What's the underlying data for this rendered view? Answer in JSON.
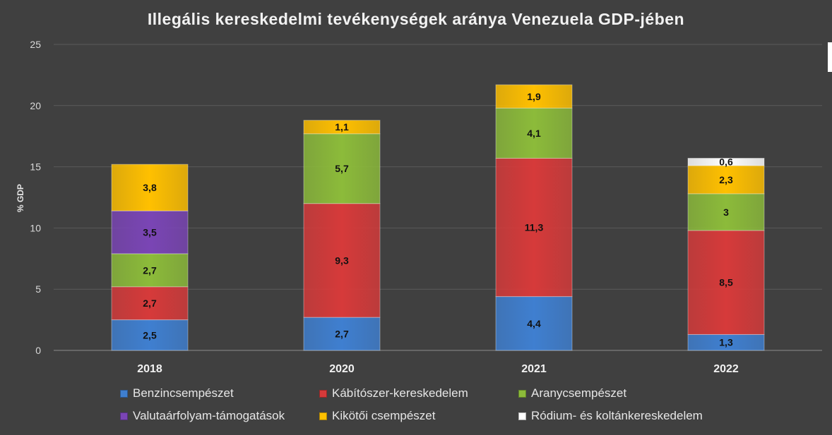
{
  "chart_data": {
    "type": "bar",
    "stacked": true,
    "title": "Illegális kereskedelmi tevékenységek aránya Venezuela GDP-jében",
    "ylabel": "% GDP",
    "xlabel": "",
    "ylim": [
      0,
      25
    ],
    "yticks": [
      "0",
      "5",
      "10",
      "15",
      "20",
      "25"
    ],
    "grid": true,
    "legend_position": "bottom",
    "categories": [
      "2018",
      "2020",
      "2021",
      "2022"
    ],
    "series": [
      {
        "name": "Benzincsempészet",
        "color": "#3f7fd0",
        "values": [
          2.5,
          2.7,
          4.4,
          1.3
        ],
        "labels": [
          "2,5",
          "2,7",
          "4,4",
          "1,3"
        ]
      },
      {
        "name": "Kábítószer-kereskedelem",
        "color": "#d63a3a",
        "values": [
          2.7,
          9.3,
          11.3,
          8.5
        ],
        "labels": [
          "2,7",
          "9,3",
          "11,3",
          "8,5"
        ]
      },
      {
        "name": "Aranycsempészet",
        "color": "#8cbb3a",
        "values": [
          2.7,
          5.7,
          4.1,
          3
        ],
        "labels": [
          "2,7",
          "5,7",
          "4,1",
          "3"
        ]
      },
      {
        "name": "Valutaárfolyam-támogatások",
        "color": "#7a45b5",
        "values": [
          3.5,
          null,
          null,
          null
        ],
        "labels": [
          "3,5",
          "",
          "",
          ""
        ]
      },
      {
        "name": "Kikötői csempészet",
        "color": "#ffc000",
        "values": [
          3.8,
          1.1,
          1.9,
          2.3
        ],
        "labels": [
          "3,8",
          "1,1",
          "1,9",
          "2,3"
        ]
      },
      {
        "name": "Ródium- és koltánkereskedelem",
        "color": "#ffffff",
        "values": [
          null,
          null,
          null,
          0.6
        ],
        "labels": [
          "",
          "",
          "",
          "0,6"
        ]
      }
    ]
  }
}
